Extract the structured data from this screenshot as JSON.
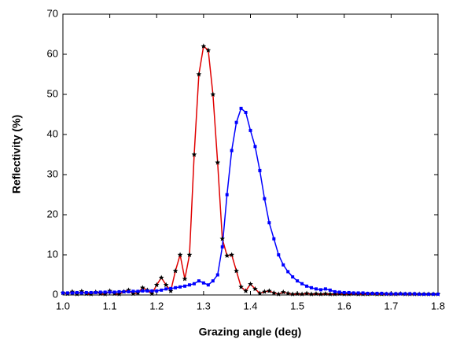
{
  "chart_data": {
    "type": "line",
    "xlabel": "Grazing angle (deg)",
    "ylabel": "Reflectivity (%)",
    "x": [
      1.0,
      1.01,
      1.02,
      1.03,
      1.04,
      1.05,
      1.06,
      1.07,
      1.08,
      1.09,
      1.1,
      1.11,
      1.12,
      1.13,
      1.14,
      1.15,
      1.16,
      1.17,
      1.18,
      1.19,
      1.2,
      1.21,
      1.22,
      1.23,
      1.24,
      1.25,
      1.26,
      1.27,
      1.28,
      1.29,
      1.3,
      1.31,
      1.32,
      1.33,
      1.34,
      1.35,
      1.36,
      1.37,
      1.38,
      1.39,
      1.4,
      1.41,
      1.42,
      1.43,
      1.44,
      1.45,
      1.46,
      1.47,
      1.48,
      1.49,
      1.5,
      1.51,
      1.52,
      1.53,
      1.54,
      1.55,
      1.56,
      1.57,
      1.58,
      1.59,
      1.6,
      1.61,
      1.62,
      1.63,
      1.64,
      1.65,
      1.66,
      1.67,
      1.68,
      1.69,
      1.7,
      1.71,
      1.72,
      1.73,
      1.74,
      1.75,
      1.76,
      1.77,
      1.78,
      1.79,
      1.8
    ],
    "series": [
      {
        "color": "#e00000",
        "marker": "star",
        "marker_color": "#000000",
        "values": [
          0.5,
          0.3,
          0.8,
          0.2,
          0.9,
          0.3,
          0.2,
          0.7,
          0.3,
          0.2,
          1.0,
          0.3,
          0.2,
          0.8,
          1.2,
          0.3,
          0.5,
          1.8,
          1.2,
          0.3,
          2.5,
          4.3,
          2.5,
          1.0,
          6.0,
          10.0,
          4.0,
          10.0,
          35,
          55,
          62,
          61,
          50,
          33,
          14,
          9.8,
          10,
          6,
          2,
          1,
          2.7,
          1.5,
          0.4,
          0.8,
          1.0,
          0.5,
          0.2,
          0.7,
          0.4,
          0.2,
          0.3,
          0.2,
          0.4,
          0.2,
          0.3,
          0.2,
          0.3,
          0.2,
          0.2,
          0.3,
          0.2,
          0.2,
          0.3,
          0.2,
          0.2,
          0.2,
          0.3,
          0.2,
          0.2,
          0.2,
          0.2,
          0.2,
          0.3,
          0.2,
          0.2,
          0.2,
          0.2,
          0.2,
          0.2,
          0.2,
          0.2
        ]
      },
      {
        "color": "#0000ff",
        "marker": "square",
        "marker_color": "#0000ff",
        "values": [
          0.5,
          0.5,
          0.5,
          0.6,
          0.5,
          0.6,
          0.6,
          0.6,
          0.7,
          0.7,
          0.7,
          0.7,
          0.8,
          0.8,
          0.8,
          0.9,
          0.9,
          1.0,
          1.0,
          1.0,
          1.0,
          1.2,
          1.5,
          1.6,
          1.8,
          2.0,
          2.2,
          2.5,
          2.8,
          3.5,
          3.0,
          2.5,
          3.5,
          5,
          12,
          25,
          36,
          43,
          46.5,
          45.5,
          41,
          37,
          31,
          24,
          18,
          14,
          10,
          7.5,
          5.8,
          4.5,
          3.5,
          2.8,
          2.2,
          1.8,
          1.5,
          1.3,
          1.5,
          1.2,
          0.8,
          0.7,
          0.6,
          0.6,
          0.5,
          0.5,
          0.5,
          0.4,
          0.4,
          0.4,
          0.4,
          0.3,
          0.3,
          0.3,
          0.3,
          0.3,
          0.3,
          0.3,
          0.2,
          0.2,
          0.2,
          0.2,
          0.2
        ]
      }
    ],
    "xlim": [
      1.0,
      1.8
    ],
    "xticks": [
      {
        "value": 1.0,
        "label": "1.0"
      },
      1.1,
      1.2,
      1.3,
      1.4,
      1.5,
      1.6,
      1.7,
      {
        "value": 1.8,
        "label": "1.8"
      }
    ],
    "ylim": [
      0,
      70
    ],
    "yticks": [
      0,
      10,
      20,
      30,
      40,
      50,
      60,
      70
    ]
  }
}
